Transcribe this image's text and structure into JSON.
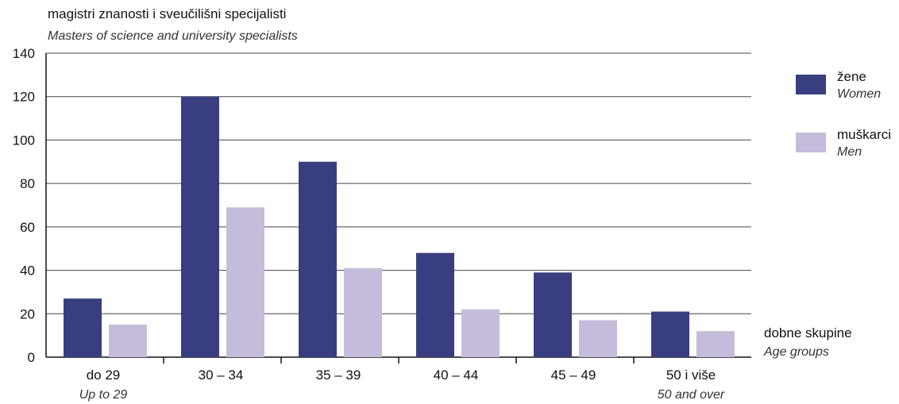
{
  "chart_data": {
    "type": "bar",
    "title": "magistri znanosti i sveučilišni specijalisti",
    "subtitle": "Masters of science and university specialists",
    "categories": [
      "do 29",
      "30 – 34",
      "35 – 39",
      "40 – 44",
      "45 – 49",
      "50 i više"
    ],
    "category_subtitles": [
      "Up to 29",
      "",
      "",
      "",
      "",
      "50 and over"
    ],
    "series": [
      {
        "name": "žene",
        "name_en": "Women",
        "color": "#393e80",
        "values": [
          27,
          120,
          90,
          48,
          39,
          21
        ]
      },
      {
        "name": "muškarci",
        "name_en": "Men",
        "color": "#c5bcdb",
        "values": [
          15,
          69,
          41,
          22,
          17,
          12
        ]
      }
    ],
    "ylim": [
      0,
      140
    ],
    "yticks": [
      0,
      20,
      40,
      60,
      80,
      100,
      120,
      140
    ],
    "xlabel": "dobne skupine",
    "xlabel_en": "Age groups",
    "grid": true,
    "legend_position": "right"
  }
}
